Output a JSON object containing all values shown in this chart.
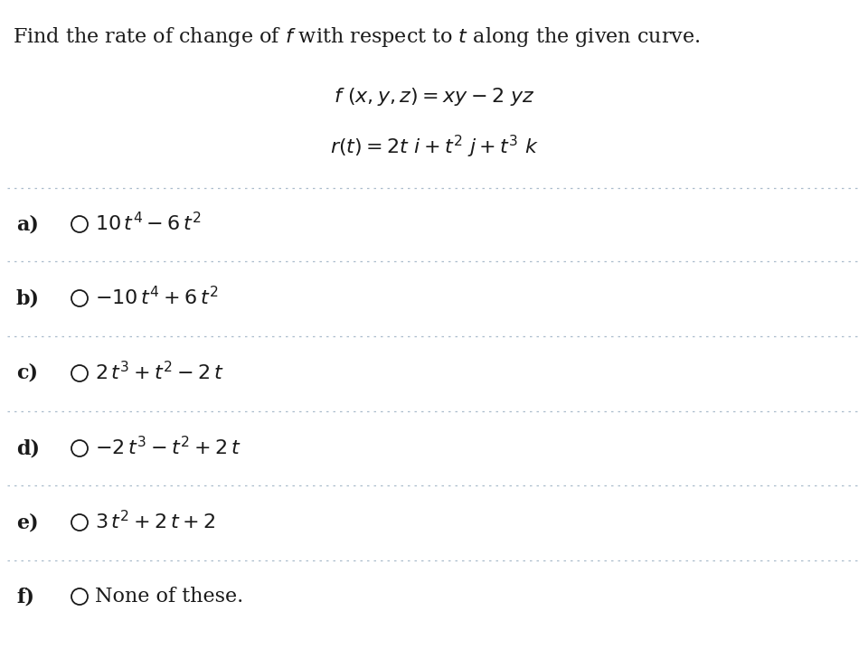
{
  "title_plain": "Find the rate of change of ",
  "title_f": "f",
  "title_mid": " with respect to ",
  "title_t": "t",
  "title_end": " along the given curve.",
  "formula1": "$f\\ (x, y, z) = xy - 2\\ yz$",
  "formula2": "$r(t) = 2t\\ i + t^2\\ j + t^3\\ k$",
  "options": [
    {
      "label": "a)",
      "expr": "$10\\,t^4 - 6\\,t^2$"
    },
    {
      "label": "b)",
      "expr": "$-10\\,t^4 + 6\\,t^2$"
    },
    {
      "label": "c)",
      "expr": "$2\\,t^3 + t^2 - 2\\,t$"
    },
    {
      "label": "d)",
      "expr": "$-2\\,t^3 - t^2 + 2\\,t$"
    },
    {
      "label": "e)",
      "expr": "$3\\,t^2 + 2\\,t + 2$"
    },
    {
      "label": "f)",
      "expr": "None of these."
    }
  ],
  "background_color": "#ffffff",
  "text_color": "#1a1a1a",
  "divider_color": "#aabccc",
  "title_fontsize": 16,
  "formula_fontsize": 16,
  "option_fontsize": 16,
  "label_fontsize": 16
}
